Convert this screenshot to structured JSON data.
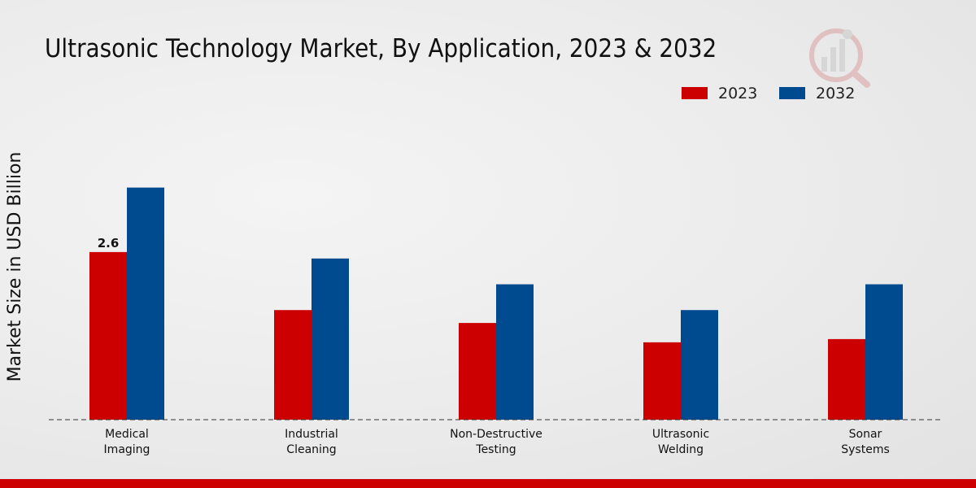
{
  "colors": {
    "series_2023": "#cc0000",
    "series_2032": "#004a8f",
    "bottom_bar": "#cc0000",
    "watermark": "#c8c8c8"
  },
  "icons": {
    "watermark": "chart-magnifier-logo-icon"
  },
  "chart_data": {
    "type": "bar",
    "title": "Ultrasonic Technology Market, By Application, 2023 & 2032",
    "xlabel": "",
    "ylabel": "Market Size in USD Billion",
    "categories": [
      [
        "Medical",
        "Imaging"
      ],
      [
        "Industrial",
        "Cleaning"
      ],
      [
        "Non-Destructive",
        "Testing"
      ],
      [
        "Ultrasonic",
        "Welding"
      ],
      [
        "Sonar",
        "Systems"
      ]
    ],
    "series": [
      {
        "name": "2023",
        "values": [
          2.6,
          1.7,
          1.5,
          1.2,
          1.25
        ]
      },
      {
        "name": "2032",
        "values": [
          3.6,
          2.5,
          2.1,
          1.7,
          2.1
        ]
      }
    ],
    "data_labels": [
      {
        "series": 0,
        "index": 0,
        "text": "2.6"
      }
    ],
    "ylim": [
      0,
      5.5
    ],
    "grid": false,
    "legend_position": "top-right"
  }
}
